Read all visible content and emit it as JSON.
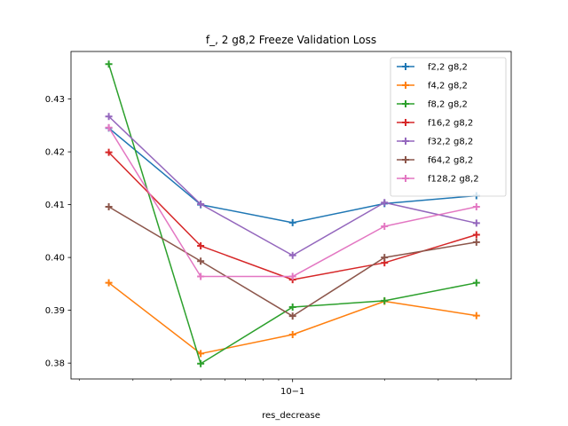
{
  "chart_data": {
    "type": "line",
    "title": "f_, 2 g8,2 Freeze Validation Loss",
    "xlabel": "res_decrease",
    "ylabel": "",
    "xscale": "log",
    "x": [
      0.025,
      0.05,
      0.1,
      0.2,
      0.4
    ],
    "xlim": [
      0.0188,
      0.52
    ],
    "ylim": [
      0.377,
      0.439
    ],
    "xticks": [
      {
        "value": 0.1,
        "label": "10−1"
      }
    ],
    "yticks": [
      {
        "value": 0.38,
        "label": "0.38"
      },
      {
        "value": 0.39,
        "label": "0.39"
      },
      {
        "value": 0.4,
        "label": "0.40"
      },
      {
        "value": 0.41,
        "label": "0.41"
      },
      {
        "value": 0.42,
        "label": "0.42"
      },
      {
        "value": 0.43,
        "label": "0.43"
      }
    ],
    "minor_xticks": [
      0.02,
      0.03,
      0.04,
      0.05,
      0.06,
      0.07,
      0.08,
      0.09,
      0.2,
      0.3,
      0.4
    ],
    "grid": false,
    "legend_position": "top-right",
    "series": [
      {
        "name": "f2,2 g8,2",
        "color": "#1f77b4",
        "values": [
          0.4245,
          0.41,
          0.4066,
          0.4102,
          0.4117
        ]
      },
      {
        "name": "f4,2 g8,2",
        "color": "#ff7f0e",
        "values": [
          0.3952,
          0.3818,
          0.3854,
          0.3917,
          0.389
        ]
      },
      {
        "name": "f8,2 g8,2",
        "color": "#2ca02c",
        "values": [
          0.4366,
          0.3799,
          0.3906,
          0.3918,
          0.3952
        ]
      },
      {
        "name": "f16,2 g8,2",
        "color": "#d62728",
        "values": [
          0.4199,
          0.4022,
          0.3958,
          0.399,
          0.4043
        ]
      },
      {
        "name": "f32,2 g8,2",
        "color": "#9467bd",
        "values": [
          0.4267,
          0.4101,
          0.4004,
          0.4104,
          0.4065
        ]
      },
      {
        "name": "f64,2 g8,2",
        "color": "#8c564b",
        "values": [
          0.4096,
          0.3993,
          0.3889,
          0.4,
          0.4029
        ]
      },
      {
        "name": "f128,2 g8,2",
        "color": "#e377c2",
        "values": [
          0.4246,
          0.3964,
          0.3964,
          0.4059,
          0.4096
        ]
      }
    ]
  }
}
